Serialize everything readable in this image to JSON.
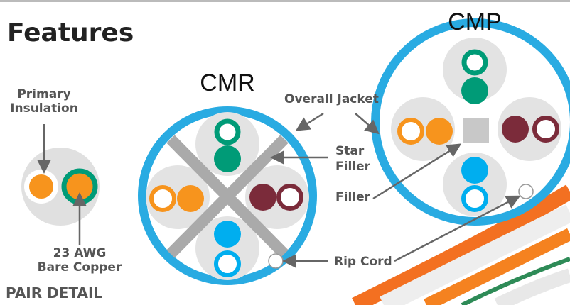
{
  "title": "Features",
  "cables": [
    {
      "label": "CMR"
    },
    {
      "label": "CMP"
    }
  ],
  "callouts": {
    "primary_insulation": {
      "lines": [
        "Primary",
        "Insulation"
      ]
    },
    "overall_jacket": {
      "lines": [
        "Overall Jacket"
      ]
    },
    "star_filler": {
      "lines": [
        "Star",
        "Filler"
      ]
    },
    "filler": {
      "lines": [
        "Filler"
      ]
    },
    "rip_cord": {
      "lines": [
        "Rip Cord"
      ]
    },
    "conductor": {
      "lines": [
        "23 AWG",
        "Bare Copper"
      ]
    }
  },
  "pair_detail": "PAIR DETAIL"
}
